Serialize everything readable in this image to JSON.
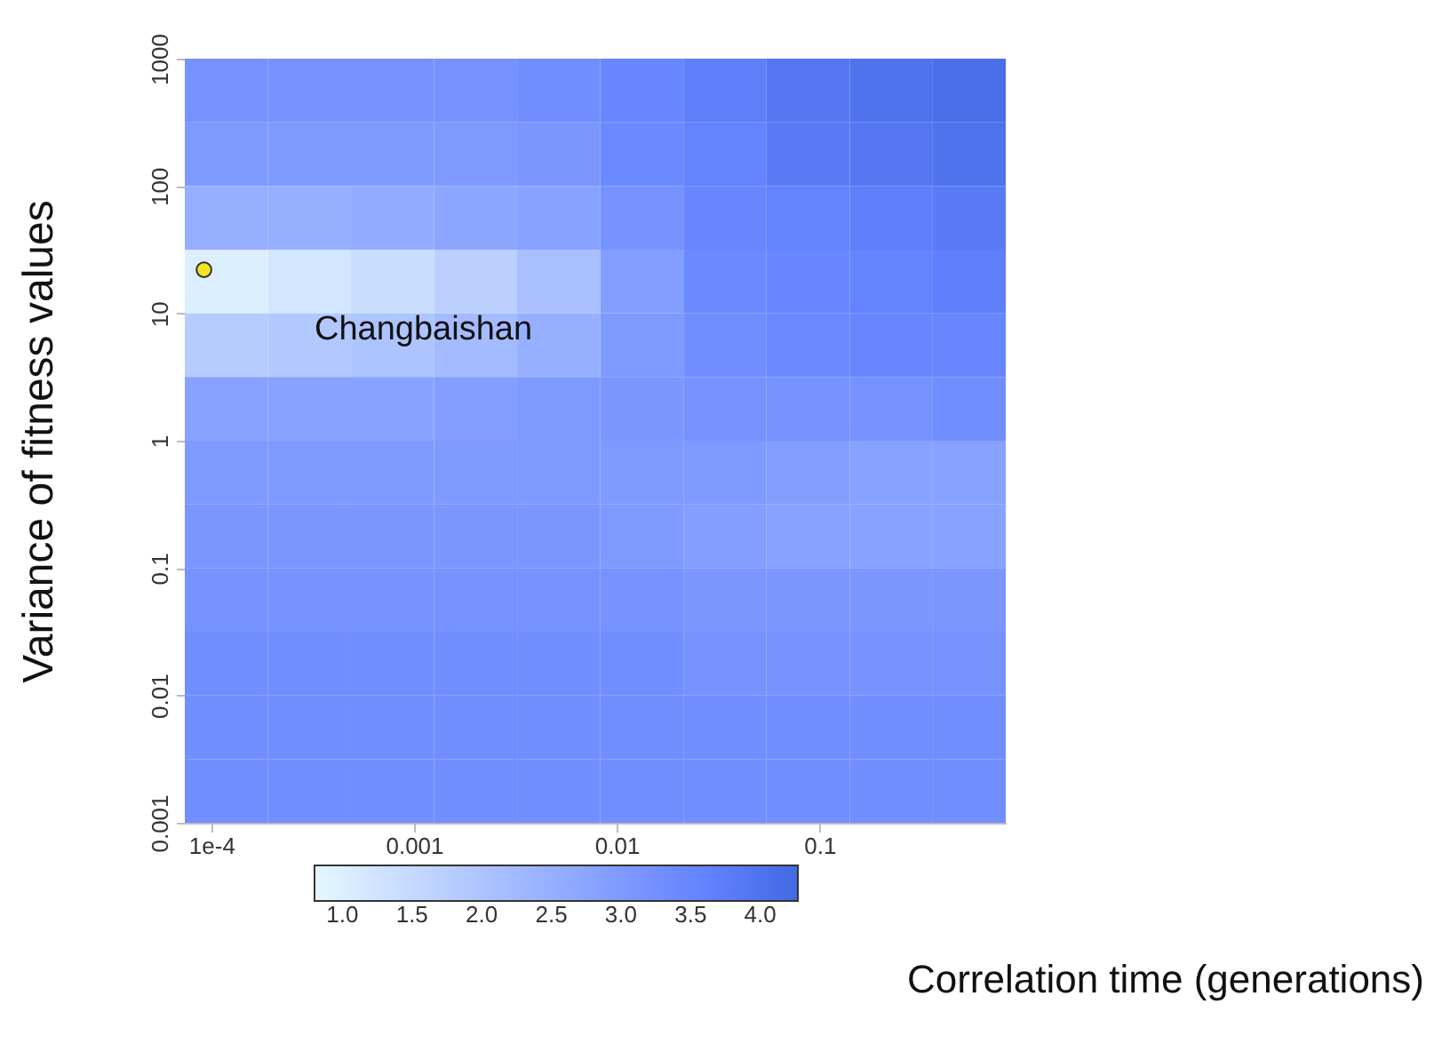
{
  "chart_data": {
    "type": "heatmap",
    "xlabel": "Correlation time (generations)",
    "ylabel": "Variance of fitness values",
    "log": "xy",
    "xlim": [
      7.4e-05,
      0.83
    ],
    "ylim": [
      0.001,
      1000
    ],
    "xticks": [
      {
        "value": 0.0001,
        "label": "1e-4"
      },
      0.001,
      0.01,
      0.1
    ],
    "yticks": [
      0.001,
      0.01,
      0.1,
      1,
      10,
      100,
      1000
    ],
    "x": [
      0.000119,
      0.000305,
      0.000783,
      0.00201,
      0.00518,
      0.0133,
      0.0342,
      0.0879,
      0.226,
      0.581
    ],
    "y": [
      562,
      178,
      56.2,
      17.8,
      5.62,
      1.78,
      0.562,
      0.178,
      0.0562,
      0.0178,
      0.00562,
      0.00178
    ],
    "cells": [
      [
        3.2,
        3.2,
        3.2,
        3.2,
        3.3,
        3.5,
        3.7,
        3.9,
        4.0,
        4.1
      ],
      [
        3.0,
        3.0,
        3.0,
        3.0,
        3.1,
        3.4,
        3.6,
        3.8,
        3.9,
        4.0
      ],
      [
        2.5,
        2.5,
        2.6,
        2.7,
        2.8,
        3.2,
        3.5,
        3.6,
        3.7,
        3.8
      ],
      [
        1.0,
        1.2,
        1.4,
        1.7,
        2.1,
        2.9,
        3.4,
        3.5,
        3.6,
        3.7
      ],
      [
        1.8,
        1.9,
        2.0,
        2.2,
        2.5,
        3.0,
        3.3,
        3.4,
        3.5,
        3.5
      ],
      [
        2.8,
        2.8,
        2.8,
        2.9,
        3.0,
        3.1,
        3.2,
        3.2,
        3.2,
        3.3
      ],
      [
        3.0,
        3.0,
        3.0,
        3.0,
        3.0,
        3.0,
        3.0,
        2.9,
        2.8,
        2.8
      ],
      [
        3.1,
        3.1,
        3.1,
        3.1,
        3.1,
        3.0,
        2.9,
        2.8,
        2.8,
        2.8
      ],
      [
        3.2,
        3.2,
        3.2,
        3.2,
        3.2,
        3.2,
        3.1,
        3.1,
        3.1,
        3.1
      ],
      [
        3.3,
        3.3,
        3.3,
        3.3,
        3.3,
        3.3,
        3.2,
        3.2,
        3.2,
        3.2
      ],
      [
        3.3,
        3.3,
        3.3,
        3.3,
        3.3,
        3.3,
        3.3,
        3.3,
        3.3,
        3.3
      ],
      [
        3.3,
        3.3,
        3.3,
        3.3,
        3.3,
        3.3,
        3.3,
        3.3,
        3.3,
        3.3
      ]
    ],
    "clim": [
      0.8,
      4.27
    ],
    "cticks": [
      {
        "value": 1,
        "label": "1.0"
      },
      {
        "value": 1.5,
        "label": "1.5"
      },
      {
        "value": 2,
        "label": "2.0"
      },
      {
        "value": 2.5,
        "label": "2.5"
      },
      {
        "value": 3,
        "label": "3.0"
      },
      {
        "value": 3.5,
        "label": "3.5"
      },
      {
        "value": 4,
        "label": "4.0"
      }
    ],
    "colors": [
      "#ffffff",
      "#4169e1"
    ],
    "series": [
      {
        "type": "scatter",
        "x": [
          9.2e-05
        ],
        "values": [
          22
        ],
        "color": "#f2e424"
      }
    ],
    "annotations": [
      "Changbaishan"
    ]
  }
}
